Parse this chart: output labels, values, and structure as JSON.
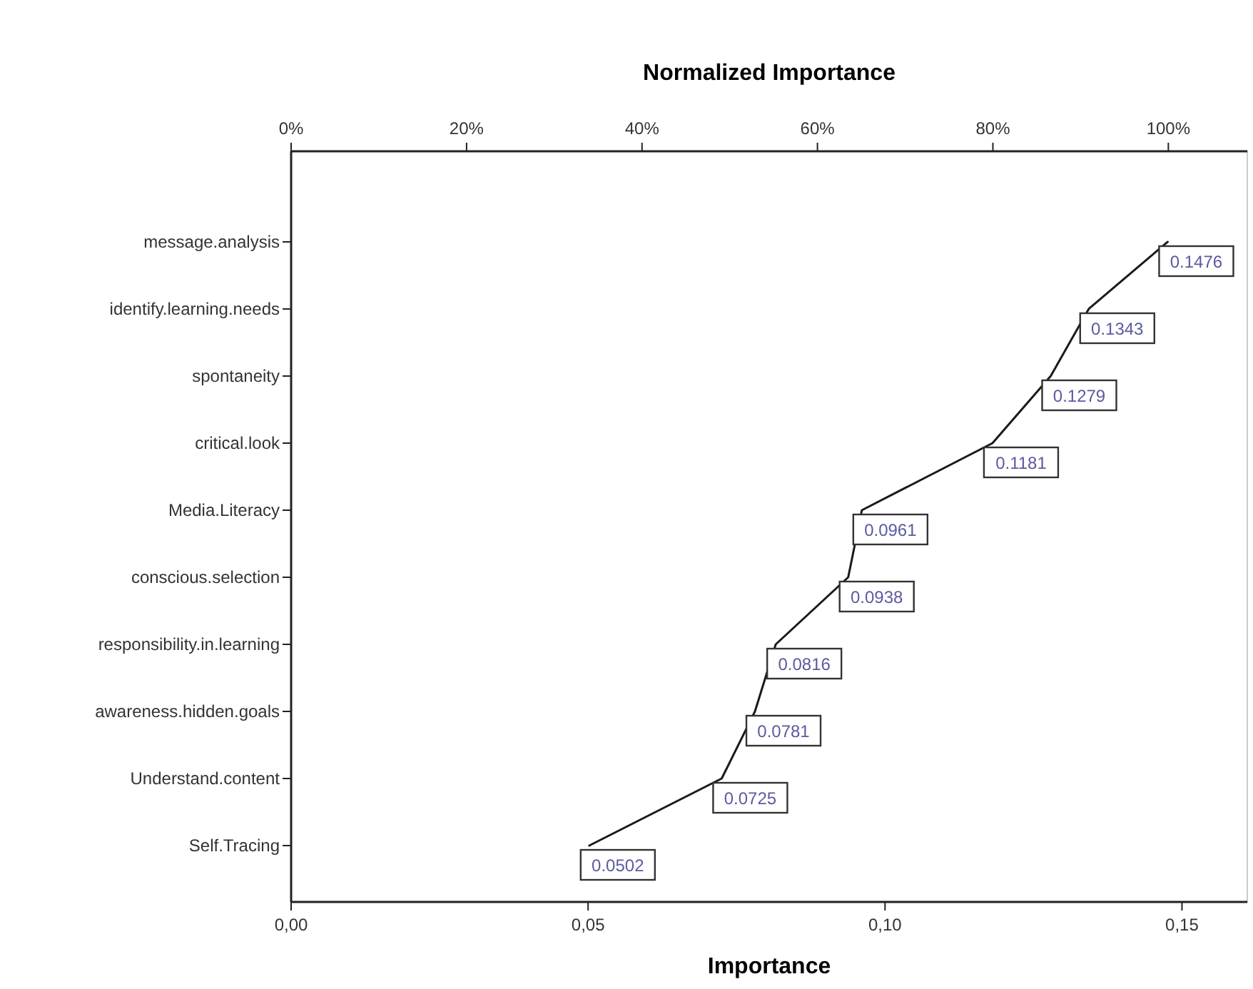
{
  "chart_data": {
    "type": "line",
    "orientation": "horizontal",
    "categories": [
      "message.analysis",
      "identify.learning.needs",
      "spontaneity",
      "critical.look",
      "Media.Literacy",
      "conscious.selection",
      "responsibility.in.learning",
      "awareness.hidden.goals",
      "Understand.content",
      "Self.Tracing"
    ],
    "series": [
      {
        "color": "#1a1a1a",
        "values": [
          0.1476,
          0.1343,
          0.1279,
          0.1181,
          0.0961,
          0.0938,
          0.0816,
          0.0781,
          0.0725,
          0.0502
        ]
      }
    ],
    "data_labels": true,
    "xlabel": "Importance",
    "x2label": "Normalized Importance",
    "xlim": [
      0,
      0.161
    ],
    "xticks": [
      {
        "value": 0,
        "label": "0,00"
      },
      {
        "value": 0.05,
        "label": "0,05"
      },
      {
        "value": 0.1,
        "label": "0,10"
      },
      {
        "value": 0.15,
        "label": "0,15"
      }
    ],
    "x2lim": [
      0,
      109
    ],
    "x2ticks": [
      {
        "value": 0,
        "label": "0%"
      },
      {
        "value": 20,
        "label": "20%"
      },
      {
        "value": 40,
        "label": "40%"
      },
      {
        "value": 60,
        "label": "60%"
      },
      {
        "value": 80,
        "label": "80%"
      },
      {
        "value": 100,
        "label": "100%"
      }
    ],
    "grid": false,
    "marker": "none",
    "line_style": "solid"
  }
}
